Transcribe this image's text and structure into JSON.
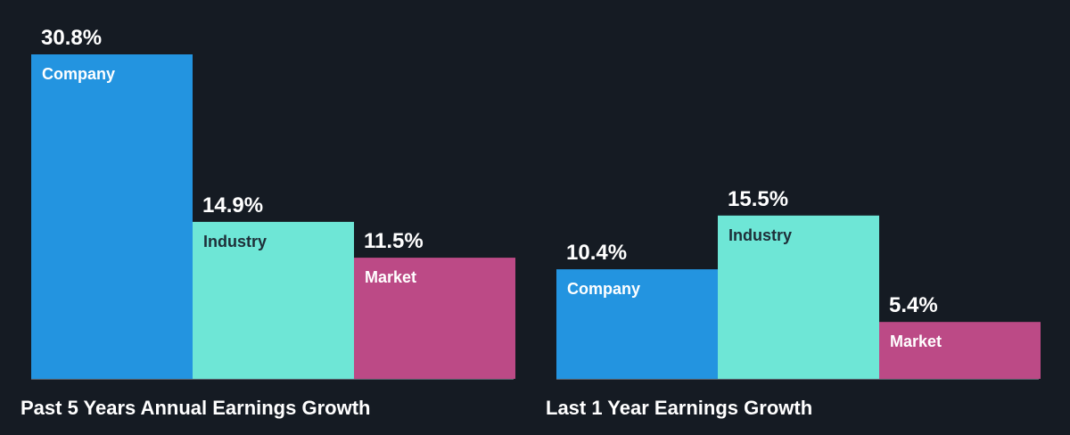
{
  "chart_data": [
    {
      "type": "bar",
      "title": "Past 5 Years Annual Earnings Growth",
      "categories": [
        "Company",
        "Industry",
        "Market"
      ],
      "values": [
        30.8,
        14.9,
        11.5
      ],
      "value_labels": [
        "30.8%",
        "14.9%",
        "11.5%"
      ],
      "unit": "%",
      "ylim": [
        0,
        30.8
      ],
      "grid": false,
      "colors": [
        "#2394e0",
        "#6ee6d6",
        "#bc4a86"
      ],
      "label_colors": [
        "#ffffff",
        "#1e2e38",
        "#ffffff"
      ]
    },
    {
      "type": "bar",
      "title": "Last 1 Year Earnings Growth",
      "categories": [
        "Company",
        "Industry",
        "Market"
      ],
      "values": [
        10.4,
        15.5,
        5.4
      ],
      "value_labels": [
        "10.4%",
        "15.5%",
        "5.4%"
      ],
      "unit": "%",
      "ylim": [
        0,
        30.8
      ],
      "grid": false,
      "colors": [
        "#2394e0",
        "#6ee6d6",
        "#bc4a86"
      ],
      "label_colors": [
        "#ffffff",
        "#1e2e38",
        "#ffffff"
      ]
    }
  ],
  "background_color": "#151b23",
  "baseline_color": "#5b6570"
}
